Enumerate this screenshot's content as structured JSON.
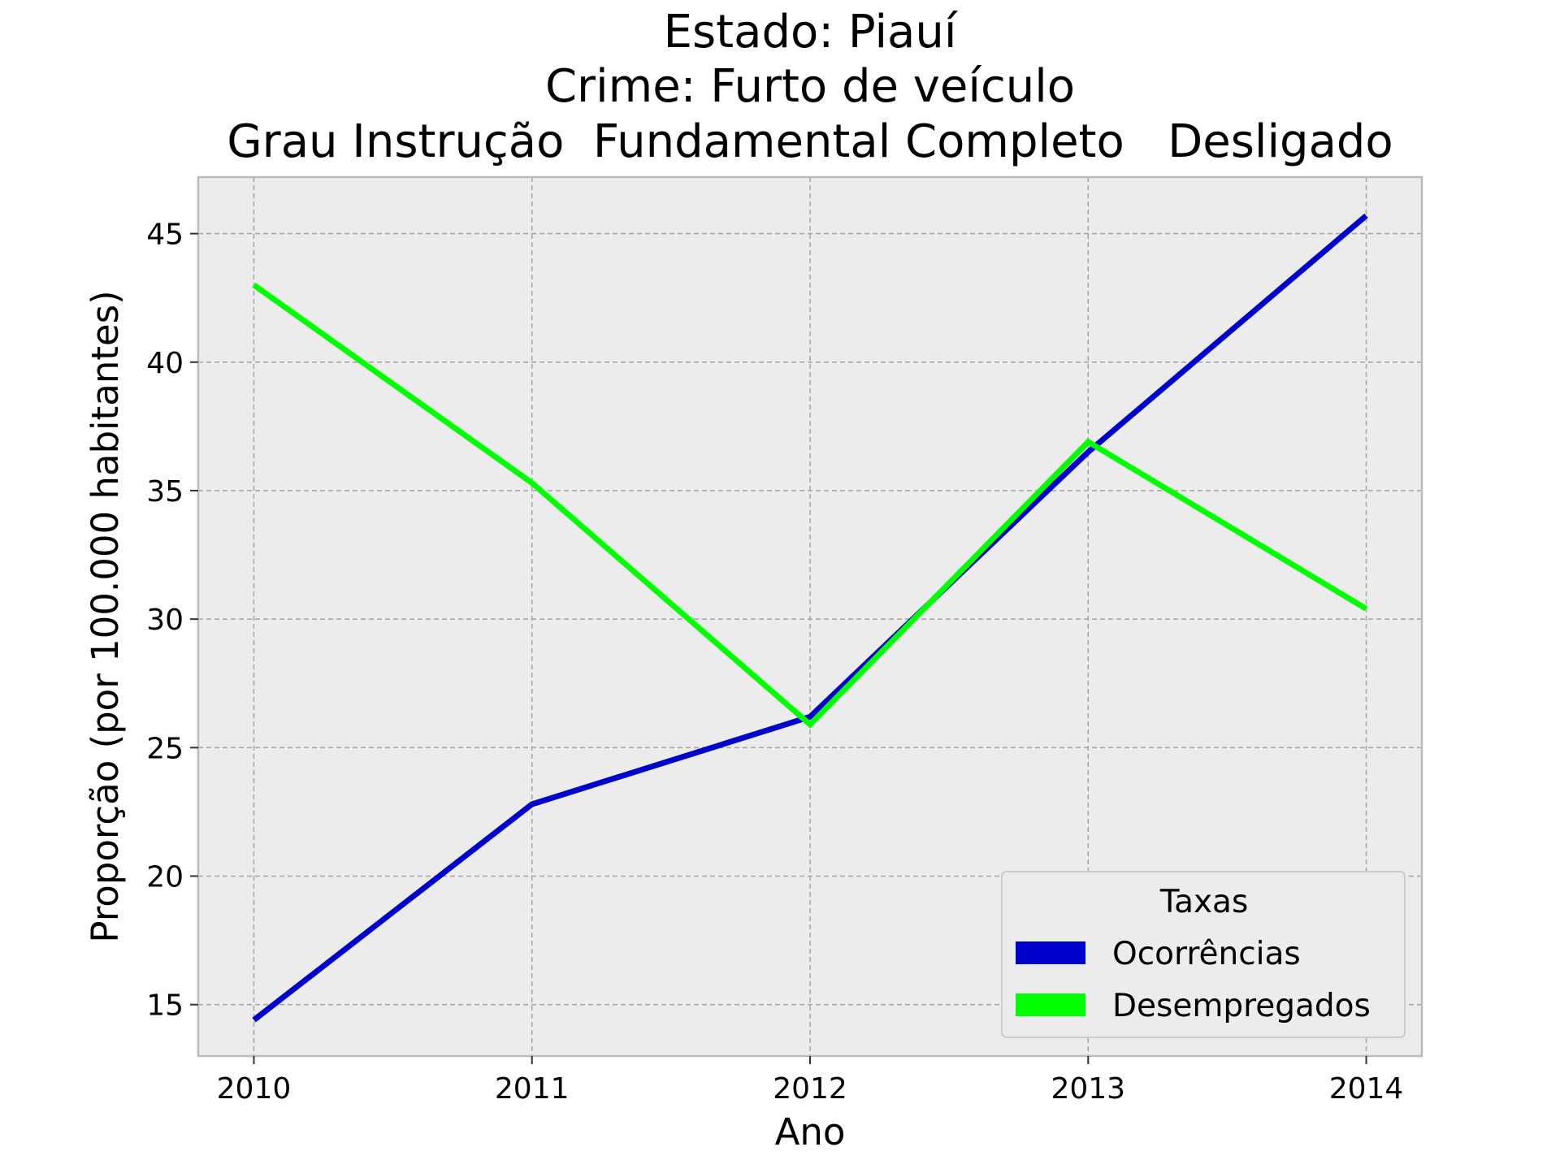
{
  "chart_data": {
    "type": "line",
    "title_lines": [
      "Estado: Piauí",
      "Crime: Furto de veículo",
      "Grau Instrução  Fundamental Completo   Desligado"
    ],
    "xlabel": "Ano",
    "ylabel": "Proporção (por 100.000 habitantes)",
    "x": [
      2010,
      2011,
      2012,
      2013,
      2014
    ],
    "x_tick_labels": [
      "2010",
      "2011",
      "2012",
      "2013",
      "2014"
    ],
    "y_ticks": [
      15,
      20,
      25,
      30,
      35,
      40,
      45
    ],
    "y_tick_labels": [
      "15",
      "20",
      "25",
      "30",
      "35",
      "40",
      "45"
    ],
    "xlim": [
      2009.8,
      2014.2
    ],
    "ylim": [
      13.0,
      47.2
    ],
    "grid": true,
    "legend": {
      "title": "Taxas",
      "placement": "lower right"
    },
    "series": [
      {
        "name": "Ocorrências",
        "color": "#0000cc",
        "values": [
          14.4,
          22.8,
          26.2,
          36.5,
          45.7
        ]
      },
      {
        "name": "Desempregados",
        "color": "#00ff00",
        "values": [
          43.0,
          35.3,
          25.9,
          36.9,
          30.4
        ]
      }
    ],
    "colors": {
      "plot_background": "#ececec",
      "frame": "#bcbcbc",
      "grid": "#a8a8a8"
    }
  }
}
